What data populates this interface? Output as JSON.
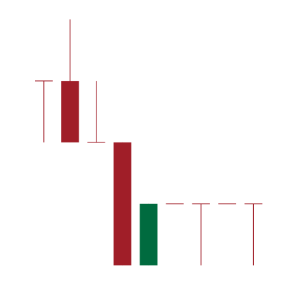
{
  "colors": {
    "background": "#ffffff",
    "down": "#a01e28",
    "up": "#006b3f",
    "wick": "#a01e28"
  },
  "chart_data": {
    "type": "candlestick",
    "title": "",
    "xlabel": "",
    "ylabel": "",
    "ylim": [
      0,
      100
    ],
    "grid": false,
    "legend": "none",
    "candles": [
      {
        "index": 0,
        "open": 73,
        "high": 73,
        "low": 51,
        "close": 73
      },
      {
        "index": 1,
        "open": 73,
        "high": 95,
        "low": 51,
        "close": 51
      },
      {
        "index": 2,
        "open": 51,
        "high": 73,
        "low": 51,
        "close": 51
      },
      {
        "index": 3,
        "open": 51,
        "high": 51,
        "low": 7,
        "close": 7
      },
      {
        "index": 4,
        "open": 7,
        "high": 29,
        "low": 7,
        "close": 29
      },
      {
        "index": 5,
        "open": 29,
        "high": 29,
        "low": 29,
        "close": 29
      },
      {
        "index": 6,
        "open": 29,
        "high": 29,
        "low": 7,
        "close": 29
      },
      {
        "index": 7,
        "open": 29,
        "high": 29,
        "low": 29,
        "close": 29
      },
      {
        "index": 8,
        "open": 29,
        "high": 29,
        "low": 7,
        "close": 29
      }
    ]
  }
}
